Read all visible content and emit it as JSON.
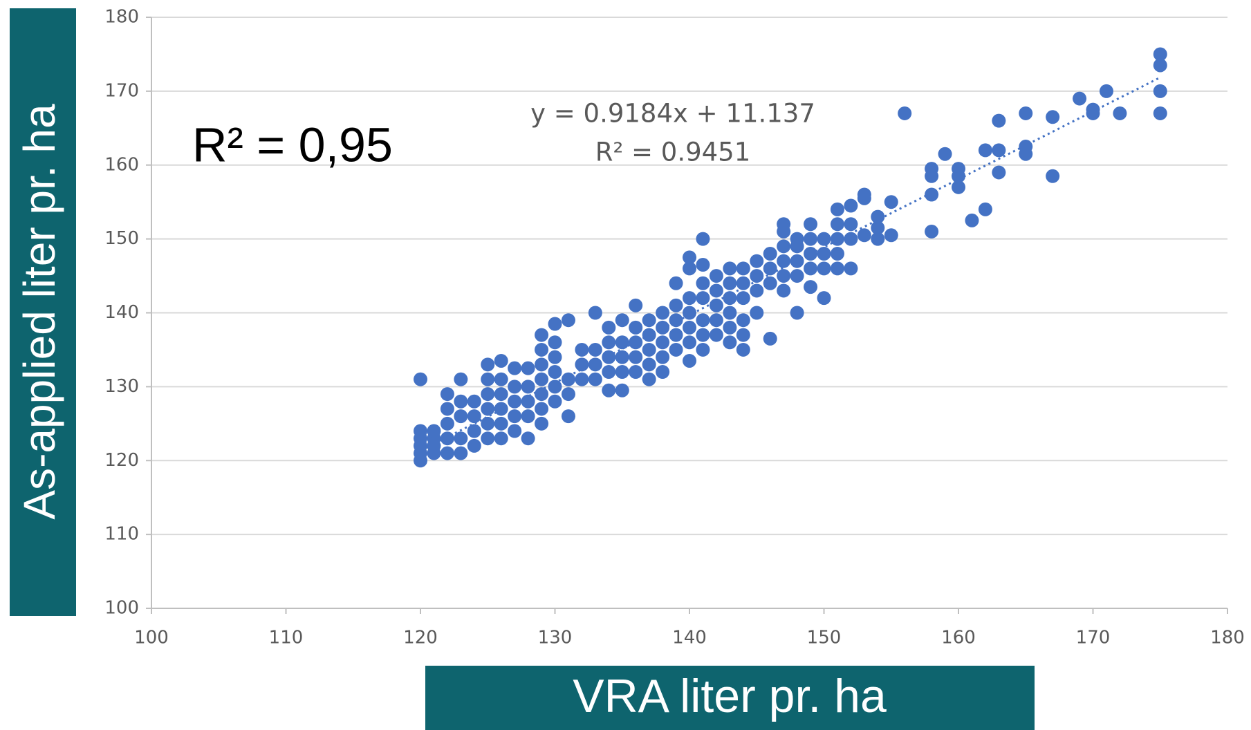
{
  "chart_data": {
    "type": "scatter",
    "x_label": "VRA liter pr. ha",
    "y_label": "As-applied liter pr. ha",
    "annotation": "R² = 0,95",
    "trendline": {
      "equation": "y = 0.9184x + 11.137",
      "r2_label": "R² = 0.9451",
      "slope": 0.9184,
      "intercept": 11.137
    },
    "color": "#4472c4",
    "grid": true,
    "xlim": [
      100,
      180
    ],
    "ylim": [
      100,
      180
    ],
    "xticks": [
      100,
      110,
      120,
      130,
      140,
      150,
      160,
      170,
      180
    ],
    "yticks": [
      100,
      110,
      120,
      130,
      140,
      150,
      160,
      170,
      180
    ],
    "x": [
      120,
      120,
      120,
      120,
      120,
      120,
      121,
      121,
      121,
      121,
      122,
      122,
      122,
      122,
      122,
      123,
      123,
      123,
      123,
      123,
      124,
      124,
      124,
      124,
      125,
      125,
      125,
      125,
      125,
      125,
      126,
      126,
      126,
      126,
      126,
      126,
      127,
      127,
      127,
      127,
      127,
      128,
      128,
      128,
      128,
      128,
      129,
      129,
      129,
      129,
      129,
      129,
      129,
      130,
      130,
      130,
      130,
      130,
      130,
      131,
      131,
      131,
      131,
      132,
      132,
      132,
      133,
      133,
      133,
      133,
      134,
      134,
      134,
      134,
      134,
      135,
      135,
      135,
      135,
      135,
      136,
      136,
      136,
      136,
      136,
      137,
      137,
      137,
      137,
      137,
      138,
      138,
      138,
      138,
      138,
      139,
      139,
      139,
      139,
      139,
      140,
      140,
      140,
      140,
      140,
      140,
      140,
      141,
      141,
      141,
      141,
      141,
      141,
      141,
      142,
      142,
      142,
      142,
      142,
      143,
      143,
      143,
      143,
      143,
      143,
      144,
      144,
      144,
      144,
      144,
      144,
      145,
      145,
      145,
      145,
      146,
      146,
      146,
      146,
      147,
      147,
      147,
      147,
      147,
      147,
      148,
      148,
      148,
      148,
      148,
      149,
      149,
      149,
      149,
      149,
      150,
      150,
      150,
      150,
      151,
      151,
      151,
      151,
      151,
      152,
      152,
      152,
      152,
      153,
      153,
      153,
      154,
      154,
      154,
      155,
      155,
      156,
      158,
      158,
      158,
      158,
      159,
      160,
      160,
      160,
      161,
      162,
      162,
      163,
      163,
      163,
      165,
      165,
      165,
      167,
      167,
      169,
      170,
      170,
      171,
      172,
      175,
      175,
      175,
      175
    ],
    "y": [
      120,
      121,
      122,
      123,
      124,
      131,
      121,
      122,
      123,
      124,
      121,
      123,
      125,
      127,
      129,
      121,
      123,
      126,
      128,
      131,
      122,
      124,
      126,
      128,
      123,
      125,
      127,
      129,
      131,
      133,
      123,
      125,
      127,
      129,
      131,
      133.5,
      124,
      126,
      128,
      130,
      132.5,
      123,
      126,
      128,
      130,
      132.5,
      125,
      127,
      129,
      131,
      133,
      135,
      137,
      128,
      130,
      132,
      134,
      136,
      138.5,
      126,
      129,
      131,
      139,
      131,
      133,
      135,
      131,
      133,
      135,
      140,
      129.5,
      132,
      134,
      136,
      138,
      129.5,
      132,
      134,
      136,
      139,
      132,
      134,
      136,
      138,
      141,
      131,
      133,
      135,
      137,
      139,
      132,
      134,
      136,
      138,
      140,
      135,
      137,
      139,
      141,
      144,
      133.5,
      136,
      138,
      140,
      142,
      146,
      147.5,
      135,
      137,
      139,
      142,
      144,
      146.5,
      150,
      137,
      139,
      141,
      143,
      145,
      136,
      138,
      140,
      142,
      144,
      146,
      135,
      137,
      139,
      142,
      144,
      146,
      140,
      143,
      145,
      147,
      136.5,
      144,
      146,
      148,
      143,
      145,
      147,
      149,
      151,
      152,
      140,
      145,
      147,
      149,
      150,
      143.5,
      146,
      148,
      150,
      152,
      142,
      146,
      148,
      150,
      146,
      148,
      150,
      152,
      154,
      146,
      150,
      152,
      154.5,
      150.5,
      155.5,
      156,
      150,
      151.5,
      153,
      150.5,
      155,
      167,
      151,
      156,
      158.5,
      159.5,
      161.5,
      157,
      158.5,
      159.5,
      152.5,
      154,
      162,
      159,
      162,
      166,
      161.5,
      162.5,
      167,
      158.5,
      166.5,
      169,
      167,
      167.5,
      170,
      167,
      167,
      170,
      173.5,
      175
    ]
  }
}
